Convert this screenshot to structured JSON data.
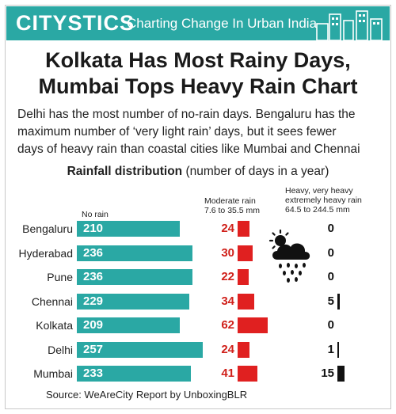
{
  "header": {
    "brand": "CITYSTICS",
    "tagline": "Charting Change In Urban India"
  },
  "headline": {
    "line1": "Kolkata Has Most Rainy Days,",
    "line2": "Mumbai Tops Heavy Rain Chart"
  },
  "intro": {
    "line1": "Delhi has the most number of no-rain days. Bengaluru has the",
    "line2": "maximum number of ‘very light rain’ days, but it sees fewer",
    "line3": "days of heavy rain than coastal cities like Mumbai and Chennai"
  },
  "subtitle": {
    "bold": "Rainfall distribution",
    "rest": " (number of days in a year)"
  },
  "columns": {
    "norain": "No rain",
    "moderate_l1": "Moderate rain",
    "moderate_l2": "7.6 to 35.5 mm",
    "heavy_l1": "Heavy, very heavy",
    "heavy_l2": "extremely heavy rain",
    "heavy_l3": "64.5 to 244.5 mm"
  },
  "icons": {
    "weather": "sun-cloud-rain-icon"
  },
  "colors": {
    "teal": "#2aa8a4",
    "red": "#e02020",
    "black": "#111111"
  },
  "chart_data": {
    "type": "bar",
    "title": "Rainfall distribution (number of days in a year)",
    "categories": [
      "Bengaluru",
      "Hyderabad",
      "Pune",
      "Chennai",
      "Kolkata",
      "Delhi",
      "Mumbai"
    ],
    "series": [
      {
        "name": "No rain",
        "values": [
          210,
          236,
          236,
          229,
          209,
          257,
          233
        ]
      },
      {
        "name": "Moderate rain 7.6 to 35.5 mm",
        "values": [
          24,
          30,
          22,
          34,
          62,
          24,
          41
        ]
      },
      {
        "name": "Heavy, very heavy extremely heavy rain 64.5 to 244.5 mm",
        "values": [
          0,
          0,
          0,
          5,
          0,
          1,
          15
        ]
      }
    ]
  },
  "source": "Source: WeAreCity Report by UnboxingBLR"
}
